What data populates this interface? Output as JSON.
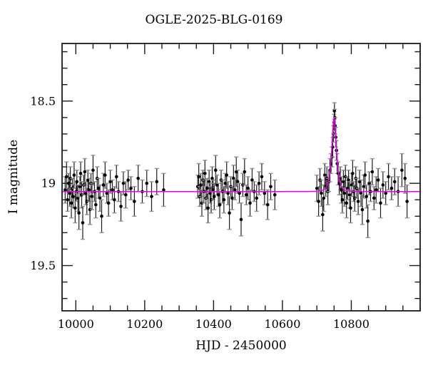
{
  "figure": {
    "background": "#ffffff",
    "title": "OGLE-2025-BLG-0169",
    "xlabel": "HJD - 2450000",
    "ylabel": "I magnitude"
  },
  "chart_data": {
    "type": "scatter",
    "title": "OGLE-2025-BLG-0169",
    "xlabel": "HJD - 2450000",
    "ylabel": "I magnitude",
    "xlim": [
      9960,
      11000
    ],
    "ylim": [
      18.15,
      19.775
    ],
    "y_inverted": true,
    "grid": false,
    "x_major_ticks": [
      {
        "v": 10000,
        "label": "10000"
      },
      {
        "v": 10200,
        "label": "10200"
      },
      {
        "v": 10400,
        "label": "10400"
      },
      {
        "v": 10600,
        "label": "10600"
      },
      {
        "v": 10800,
        "label": "10800"
      }
    ],
    "x_minor_step": 50,
    "y_major_ticks": [
      {
        "v": 18.5,
        "label": "18.5"
      },
      {
        "v": 19.0,
        "label": "19"
      },
      {
        "v": 19.5,
        "label": "19.5"
      }
    ],
    "y_minor_step": 0.1,
    "colors": {
      "points": "#000000",
      "error_bars": "#1c1c1c",
      "error_caps": "#909090",
      "model": "#ee00ee",
      "frame": "#1a1a1a"
    },
    "model": {
      "kind": "paczynski_microlensing",
      "baseline_mag": 19.05,
      "t0": 10750,
      "tE": 9,
      "u0": 0.82,
      "peak_mag": 18.6
    },
    "points": [
      [
        9969,
        19.04,
        0.08
      ],
      [
        9973,
        18.96,
        0.09
      ],
      [
        9976,
        19.1,
        0.07
      ],
      [
        9979,
        19.0,
        0.06
      ],
      [
        9982,
        19.06,
        0.08
      ],
      [
        9984,
        18.97,
        0.07
      ],
      [
        9987,
        19.12,
        0.09
      ],
      [
        9990,
        19.03,
        0.06
      ],
      [
        9992,
        19.08,
        0.07
      ],
      [
        9995,
        18.95,
        0.08
      ],
      [
        9998,
        19.15,
        0.09
      ],
      [
        10001,
        19.05,
        0.06
      ],
      [
        10003,
        18.99,
        0.07
      ],
      [
        10006,
        19.09,
        0.08
      ],
      [
        10009,
        19.18,
        0.1
      ],
      [
        10012,
        19.02,
        0.06
      ],
      [
        10014,
        18.94,
        0.07
      ],
      [
        10017,
        19.07,
        0.08
      ],
      [
        10020,
        19.24,
        0.1
      ],
      [
        10023,
        19.01,
        0.06
      ],
      [
        10026,
        18.93,
        0.08
      ],
      [
        10029,
        19.06,
        0.07
      ],
      [
        10032,
        19.11,
        0.08
      ],
      [
        10035,
        18.98,
        0.06
      ],
      [
        10038,
        19.04,
        0.07
      ],
      [
        10041,
        19.16,
        0.09
      ],
      [
        10044,
        19.0,
        0.06
      ],
      [
        10047,
        19.08,
        0.08
      ],
      [
        10050,
        18.92,
        0.09
      ],
      [
        10054,
        19.05,
        0.06
      ],
      [
        10058,
        19.13,
        0.08
      ],
      [
        10062,
        18.97,
        0.07
      ],
      [
        10066,
        19.03,
        0.06
      ],
      [
        10070,
        19.09,
        0.08
      ],
      [
        10075,
        19.2,
        0.1
      ],
      [
        10080,
        19.01,
        0.07
      ],
      [
        10085,
        18.95,
        0.08
      ],
      [
        10090,
        19.06,
        0.06
      ],
      [
        10095,
        19.12,
        0.08
      ],
      [
        10100,
        18.99,
        0.07
      ],
      [
        10106,
        19.04,
        0.06
      ],
      [
        10112,
        19.1,
        0.08
      ],
      [
        10118,
        18.96,
        0.07
      ],
      [
        10124,
        19.05,
        0.06
      ],
      [
        10131,
        19.14,
        0.09
      ],
      [
        10138,
        19.0,
        0.07
      ],
      [
        10145,
        19.07,
        0.08
      ],
      [
        10152,
        18.98,
        0.06
      ],
      [
        10160,
        19.03,
        0.07
      ],
      [
        10170,
        19.11,
        0.09
      ],
      [
        10181,
        18.97,
        0.08
      ],
      [
        10193,
        19.05,
        0.07
      ],
      [
        10206,
        19.0,
        0.08
      ],
      [
        10220,
        19.08,
        0.09
      ],
      [
        10235,
        18.99,
        0.08
      ],
      [
        10255,
        19.04,
        0.1
      ],
      [
        10354,
        19.02,
        0.07
      ],
      [
        10357,
        18.96,
        0.08
      ],
      [
        10360,
        19.08,
        0.06
      ],
      [
        10363,
        19.01,
        0.07
      ],
      [
        10366,
        19.12,
        0.08
      ],
      [
        10369,
        18.98,
        0.06
      ],
      [
        10372,
        19.05,
        0.07
      ],
      [
        10375,
        18.94,
        0.08
      ],
      [
        10378,
        19.09,
        0.07
      ],
      [
        10381,
        19.03,
        0.06
      ],
      [
        10384,
        19.15,
        0.09
      ],
      [
        10387,
        18.99,
        0.07
      ],
      [
        10390,
        19.06,
        0.06
      ],
      [
        10393,
        19.1,
        0.08
      ],
      [
        10396,
        18.97,
        0.07
      ],
      [
        10399,
        19.04,
        0.06
      ],
      [
        10402,
        19.08,
        0.08
      ],
      [
        10406,
        18.92,
        0.09
      ],
      [
        10410,
        19.01,
        0.06
      ],
      [
        10414,
        19.07,
        0.07
      ],
      [
        10418,
        19.13,
        0.08
      ],
      [
        10422,
        18.98,
        0.06
      ],
      [
        10426,
        19.05,
        0.07
      ],
      [
        10430,
        19.1,
        0.08
      ],
      [
        10434,
        19.0,
        0.06
      ],
      [
        10438,
        18.95,
        0.08
      ],
      [
        10442,
        19.06,
        0.07
      ],
      [
        10446,
        19.18,
        0.1
      ],
      [
        10450,
        19.02,
        0.06
      ],
      [
        10454,
        19.09,
        0.07
      ],
      [
        10458,
        18.97,
        0.08
      ],
      [
        10462,
        19.04,
        0.06
      ],
      [
        10466,
        18.93,
        0.09
      ],
      [
        10470,
        18.99,
        0.07
      ],
      [
        10475,
        19.06,
        0.06
      ],
      [
        10480,
        19.22,
        0.1
      ],
      [
        10485,
        19.01,
        0.07
      ],
      [
        10490,
        18.93,
        0.08
      ],
      [
        10495,
        19.07,
        0.06
      ],
      [
        10500,
        19.03,
        0.07
      ],
      [
        10506,
        19.12,
        0.08
      ],
      [
        10512,
        18.98,
        0.07
      ],
      [
        10518,
        19.05,
        0.06
      ],
      [
        10525,
        19.09,
        0.08
      ],
      [
        10532,
        19.0,
        0.07
      ],
      [
        10540,
        18.96,
        0.08
      ],
      [
        10548,
        19.06,
        0.07
      ],
      [
        10557,
        19.13,
        0.09
      ],
      [
        10566,
        19.02,
        0.08
      ],
      [
        10578,
        19.07,
        0.09
      ],
      [
        10700,
        19.03,
        0.08
      ],
      [
        10705,
        19.11,
        0.09
      ],
      [
        10709,
        18.98,
        0.07
      ],
      [
        10713,
        19.06,
        0.08
      ],
      [
        10717,
        19.19,
        0.1
      ],
      [
        10720,
        19.09,
        0.08
      ],
      [
        10723,
        18.95,
        0.07
      ],
      [
        10726,
        19.02,
        0.06
      ],
      [
        10729,
        18.97,
        0.07
      ],
      [
        10732,
        19.05,
        0.08
      ],
      [
        10735,
        18.99,
        0.06
      ],
      [
        10738,
        18.92,
        0.07
      ],
      [
        10741,
        18.88,
        0.06
      ],
      [
        10744,
        18.84,
        0.06
      ],
      [
        10746,
        18.78,
        0.06
      ],
      [
        10748,
        18.7,
        0.05
      ],
      [
        10750,
        18.63,
        0.05
      ],
      [
        10751,
        18.56,
        0.05
      ],
      [
        10752,
        18.6,
        0.05
      ],
      [
        10753,
        18.65,
        0.05
      ],
      [
        10755,
        18.72,
        0.06
      ],
      [
        10757,
        18.8,
        0.06
      ],
      [
        10759,
        18.88,
        0.06
      ],
      [
        10762,
        18.94,
        0.07
      ],
      [
        10765,
        19.0,
        0.07
      ],
      [
        10768,
        18.97,
        0.07
      ],
      [
        10771,
        19.04,
        0.08
      ],
      [
        10774,
        19.1,
        0.08
      ],
      [
        10777,
        18.99,
        0.07
      ],
      [
        10780,
        19.06,
        0.08
      ],
      [
        10783,
        18.96,
        0.07
      ],
      [
        10786,
        19.12,
        0.09
      ],
      [
        10789,
        19.03,
        0.07
      ],
      [
        10792,
        18.98,
        0.06
      ],
      [
        10795,
        19.07,
        0.08
      ],
      [
        10798,
        19.15,
        0.09
      ],
      [
        10801,
        19.01,
        0.07
      ],
      [
        10804,
        18.94,
        0.08
      ],
      [
        10807,
        19.05,
        0.06
      ],
      [
        10810,
        19.09,
        0.08
      ],
      [
        10813,
        18.97,
        0.07
      ],
      [
        10816,
        19.03,
        0.06
      ],
      [
        10820,
        19.11,
        0.08
      ],
      [
        10824,
        18.99,
        0.07
      ],
      [
        10828,
        19.06,
        0.08
      ],
      [
        10832,
        19.16,
        0.09
      ],
      [
        10836,
        19.02,
        0.07
      ],
      [
        10840,
        18.95,
        0.08
      ],
      [
        10844,
        19.08,
        0.07
      ],
      [
        10848,
        19.23,
        0.1
      ],
      [
        10852,
        19.0,
        0.07
      ],
      [
        10856,
        19.05,
        0.06
      ],
      [
        10861,
        18.93,
        0.08
      ],
      [
        10866,
        19.09,
        0.07
      ],
      [
        10872,
        19.04,
        0.08
      ],
      [
        10878,
        18.98,
        0.07
      ],
      [
        10885,
        19.12,
        0.09
      ],
      [
        10892,
        19.01,
        0.08
      ],
      [
        10900,
        19.06,
        0.07
      ],
      [
        10908,
        18.96,
        0.08
      ],
      [
        10917,
        19.03,
        0.07
      ],
      [
        10926,
        18.99,
        0.08
      ],
      [
        10936,
        19.05,
        0.09
      ],
      [
        10947,
        18.92,
        0.1
      ],
      [
        10956,
        18.97,
        0.09
      ],
      [
        10962,
        19.11,
        0.1
      ]
    ]
  }
}
